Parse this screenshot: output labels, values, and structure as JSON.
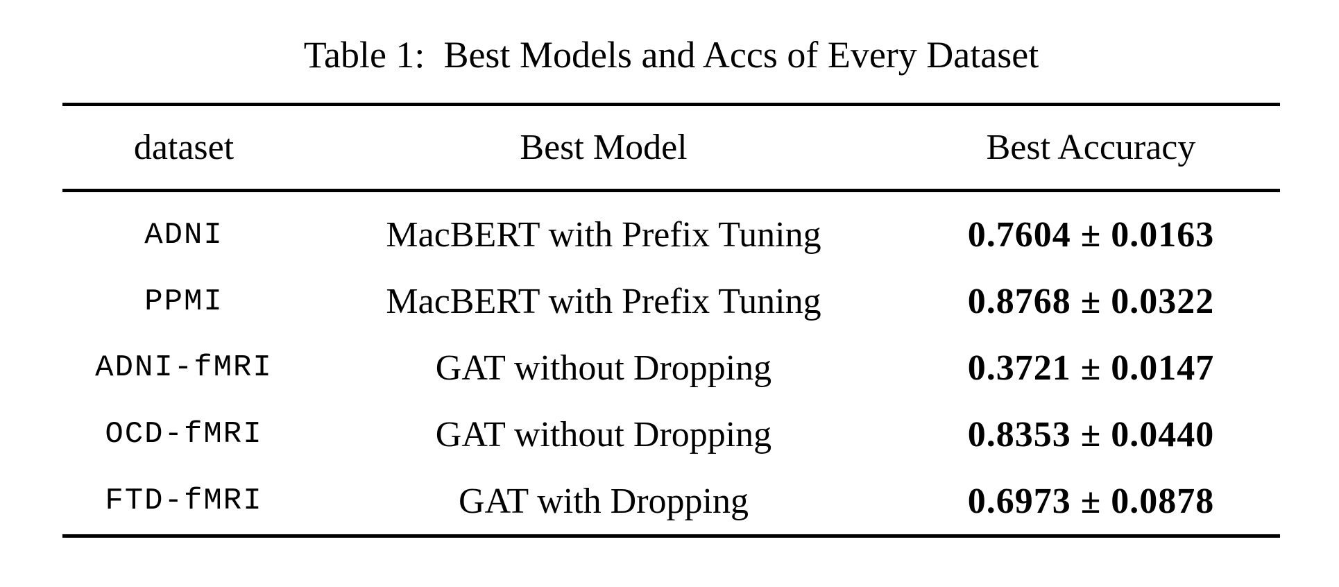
{
  "page": {
    "background": "#ffffff",
    "text_color": "#000000",
    "rule_color": "#000000"
  },
  "table": {
    "caption": "Table 1:  Best Models and Accs of Every Dataset",
    "columns": [
      "dataset",
      "Best Model",
      "Best Accuracy"
    ],
    "rows": [
      {
        "dataset": "ADNI",
        "model": "MacBERT with Prefix Tuning",
        "accuracy": "0.7604 ± 0.0163"
      },
      {
        "dataset": "PPMI",
        "model": "MacBERT with Prefix Tuning",
        "accuracy": "0.8768 ± 0.0322"
      },
      {
        "dataset": "ADNI-fMRI",
        "model": "GAT without Dropping",
        "accuracy": "0.3721 ± 0.0147"
      },
      {
        "dataset": "OCD-fMRI",
        "model": "GAT without Dropping",
        "accuracy": "0.8353 ± 0.0440"
      },
      {
        "dataset": "FTD-fMRI",
        "model": "GAT with Dropping",
        "accuracy": "0.6973 ± 0.0878"
      }
    ]
  }
}
